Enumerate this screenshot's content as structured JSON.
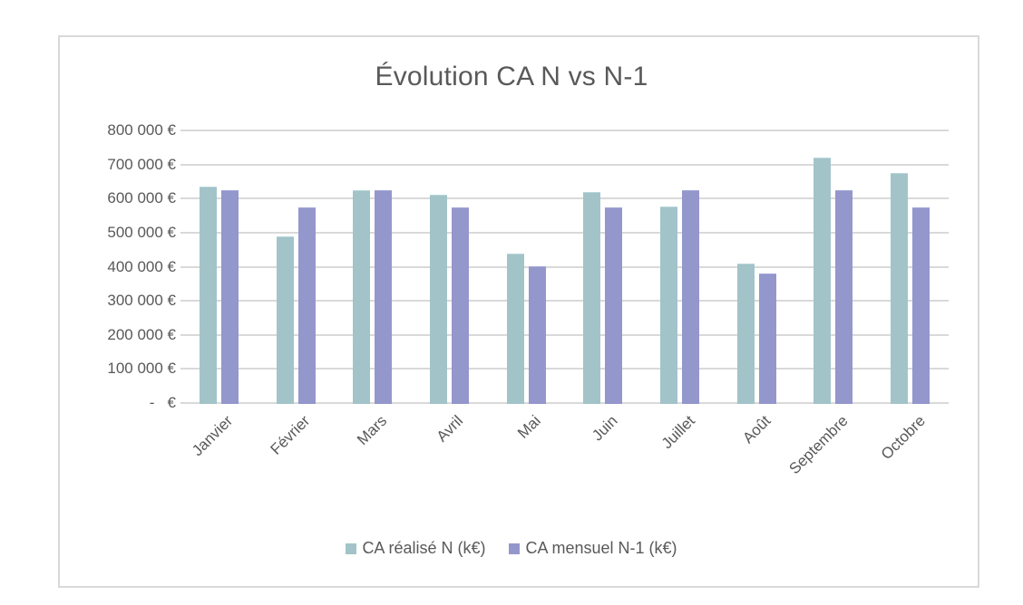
{
  "chart_data": {
    "type": "bar",
    "title": "Évolution CA N vs N-1",
    "xlabel": "",
    "ylabel": "",
    "categories": [
      "Janvier",
      "Février",
      "Mars",
      "Avril",
      "Mai",
      "Juin",
      "Juillet",
      "Août",
      "Septembre",
      "Octobre"
    ],
    "series": [
      {
        "name": "CA réalisé N (k€)",
        "color": "#A2C4C9",
        "values": [
          636000,
          489000,
          625000,
          611000,
          439000,
          620000,
          578000,
          410000,
          719000,
          676000
        ]
      },
      {
        "name": "CA mensuel N-1 (k€)",
        "color": "#9497CB",
        "values": [
          625000,
          574000,
          625000,
          574000,
          402000,
          574000,
          625000,
          381000,
          625000,
          575000
        ]
      }
    ],
    "ylim": [
      0,
      800000
    ],
    "yticks": [
      0,
      100000,
      200000,
      300000,
      400000,
      500000,
      600000,
      700000,
      800000
    ],
    "ytick_labels": [
      "-   €",
      "100 000 €",
      "200 000 €",
      "300 000 €",
      "400 000 €",
      "500 000 €",
      "600 000 €",
      "700 000 €",
      "800 000 €"
    ],
    "grid": true,
    "legend_position": "bottom"
  }
}
